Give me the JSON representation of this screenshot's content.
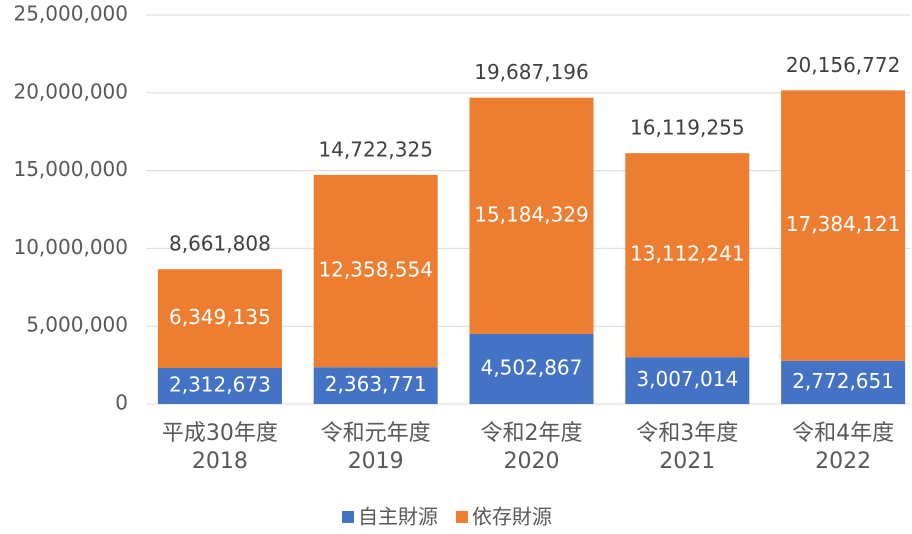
{
  "chart_data": {
    "type": "stacked_bar",
    "categories": [
      "平成30年度\n2018",
      "令和元年度\n2019",
      "令和2年度\n2020",
      "令和3年度\n2021",
      "令和4年度\n2022"
    ],
    "series": [
      {
        "name": "自主財源",
        "color": "#4472c4",
        "values": [
          2312673,
          2363771,
          4502867,
          3007014,
          2772651
        ],
        "value_labels": [
          "2,312,673",
          "2,363,771",
          "4,502,867",
          "3,007,014",
          "2,772,651"
        ]
      },
      {
        "name": "依存財源",
        "color": "#ed7d31",
        "values": [
          6349135,
          12358554,
          15184329,
          13112241,
          17384121
        ],
        "value_labels": [
          "6,349,135",
          "12,358,554",
          "15,184,329",
          "13,112,241",
          "17,384,121"
        ]
      }
    ],
    "totals": [
      8661808,
      14722325,
      19687196,
      16119255,
      20156772
    ],
    "total_labels": [
      "8,661,808",
      "14,722,325",
      "19,687,196",
      "16,119,255",
      "20,156,772"
    ],
    "ylim": [
      0,
      25000000
    ],
    "yticks": [
      0,
      {
        "value": 5000000,
        "label": "5,000,000"
      },
      {
        "value": 10000000,
        "label": "10,000,000"
      },
      {
        "value": 15000000,
        "label": "15,000,000"
      },
      {
        "value": 20000000,
        "label": "20,000,000"
      },
      {
        "value": 25000000,
        "label": "25,000,000"
      }
    ],
    "grid": true,
    "legend": "bottom"
  }
}
